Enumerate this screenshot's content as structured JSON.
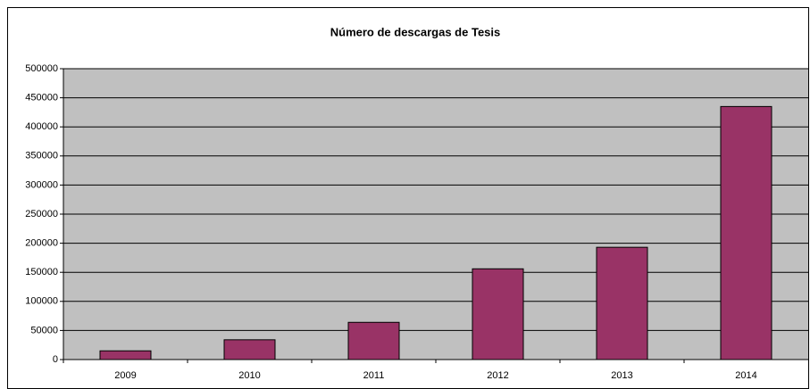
{
  "chart_data": {
    "type": "bar",
    "title": "Número de descargas de Tesis",
    "categories": [
      "2009",
      "2010",
      "2011",
      "2012",
      "2013",
      "2014"
    ],
    "values": [
      15000,
      34000,
      64000,
      156000,
      193000,
      435000
    ],
    "color": "#993366",
    "ylim": [
      0,
      500000
    ],
    "yticks": [
      0,
      50000,
      100000,
      150000,
      200000,
      250000,
      300000,
      350000,
      400000,
      450000,
      500000
    ],
    "grid": true
  }
}
